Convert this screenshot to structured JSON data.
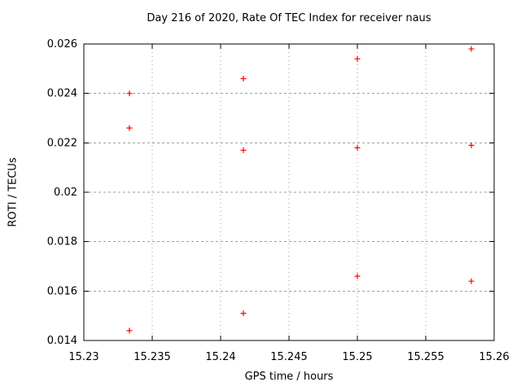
{
  "chart_data": {
    "type": "scatter",
    "title": "Day 216 of 2020, Rate Of TEC Index for receiver naus",
    "xlabel": "GPS time / hours",
    "ylabel": "ROTI / TECUs",
    "xlim": [
      15.23,
      15.26
    ],
    "ylim": [
      0.014,
      0.026
    ],
    "xtick_labels": [
      "15.23",
      "15.235",
      "15.24",
      "15.245",
      "15.25",
      "15.255",
      "15.26"
    ],
    "ytick_labels": [
      "0.014",
      "0.016",
      "0.018",
      "0.02",
      "0.022",
      "0.024",
      "0.026"
    ],
    "grid": true,
    "legend": "none",
    "marker": {
      "shape": "plus",
      "color": "#ff0000",
      "size": 7
    },
    "series": [
      {
        "name": "ROTI",
        "points": [
          [
            15.233333,
            0.024
          ],
          [
            15.233333,
            0.0226
          ],
          [
            15.233333,
            0.0144
          ],
          [
            15.241667,
            0.0246
          ],
          [
            15.241667,
            0.0217
          ],
          [
            15.241667,
            0.0151
          ],
          [
            15.25,
            0.0254
          ],
          [
            15.25,
            0.0218
          ],
          [
            15.25,
            0.0166
          ],
          [
            15.258333,
            0.0258
          ],
          [
            15.258333,
            0.0219
          ],
          [
            15.258333,
            0.0164
          ]
        ]
      }
    ],
    "colors": {
      "marker": "#ff0000",
      "axis": "#000000",
      "grid": "#9e9e9e",
      "text": "#000000",
      "background": "#ffffff"
    }
  }
}
